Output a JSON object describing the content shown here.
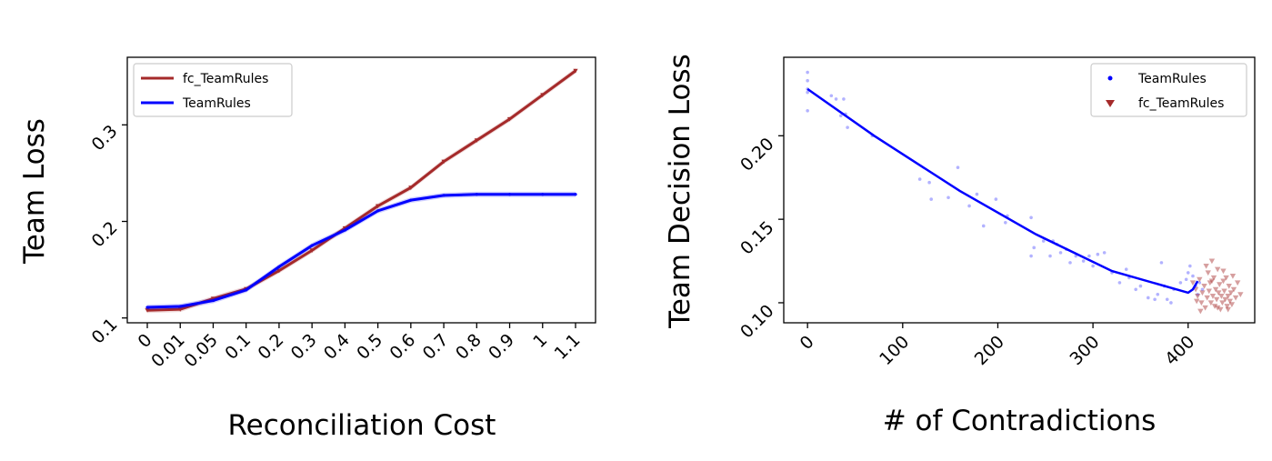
{
  "chart_data": [
    {
      "type": "line",
      "xlabel": "Reconciliation Cost",
      "ylabel": "Team Loss",
      "categories": [
        "0",
        "0.01",
        "0.05",
        "0.1",
        "0.2",
        "0.3",
        "0.4",
        "0.5",
        "0.6",
        "0.7",
        "0.8",
        "0.9",
        "1",
        "1.1"
      ],
      "ylim": [
        0.095,
        0.37
      ],
      "yticks": [
        "0.1",
        "0.2",
        "0.3"
      ],
      "legend_position": "upper-left",
      "grid": false,
      "series": [
        {
          "name": "fc_TeamRules",
          "color": "#a52a2a",
          "marker": "triangle-down",
          "values": [
            0.108,
            0.109,
            0.12,
            0.13,
            0.149,
            0.17,
            0.193,
            0.216,
            0.235,
            0.262,
            0.284,
            0.306,
            0.331,
            0.356
          ]
        },
        {
          "name": "TeamRules",
          "color": "#0000ff",
          "marker": "point",
          "values": [
            0.111,
            0.112,
            0.118,
            0.129,
            0.153,
            0.175,
            0.191,
            0.211,
            0.222,
            0.227,
            0.228,
            0.228,
            0.228,
            0.228
          ]
        }
      ]
    },
    {
      "type": "scatter",
      "xlabel": "# of Contradictions",
      "ylabel": "Team Decision Loss",
      "xlim": [
        -25,
        470
      ],
      "ylim": [
        0.088,
        0.247
      ],
      "xticks": [
        "0",
        "100",
        "200",
        "300",
        "400"
      ],
      "yticks": [
        "0.10",
        "0.15",
        "0.20"
      ],
      "legend_position": "upper-right",
      "grid": false,
      "series": [
        {
          "name": "TeamRules",
          "color": "#0000ff",
          "marker": "point",
          "points": [
            [
              0,
              0.238
            ],
            [
              0,
              0.233
            ],
            [
              0,
              0.226
            ],
            [
              0,
              0.215
            ],
            [
              0,
              0.228
            ],
            [
              25,
              0.224
            ],
            [
              30,
              0.222
            ],
            [
              38,
              0.222
            ],
            [
              35,
              0.212
            ],
            [
              42,
              0.205
            ],
            [
              40,
              0.213
            ],
            [
              68,
              0.2
            ],
            [
              118,
              0.174
            ],
            [
              128,
              0.172
            ],
            [
              130,
              0.162
            ],
            [
              148,
              0.163
            ],
            [
              158,
              0.181
            ],
            [
              170,
              0.158
            ],
            [
              178,
              0.165
            ],
            [
              185,
              0.146
            ],
            [
              198,
              0.162
            ],
            [
              208,
              0.148
            ],
            [
              210,
              0.152
            ],
            [
              235,
              0.151
            ],
            [
              238,
              0.133
            ],
            [
              235,
              0.128
            ],
            [
              248,
              0.137
            ],
            [
              255,
              0.128
            ],
            [
              258,
              0.137
            ],
            [
              262,
              0.135
            ],
            [
              266,
              0.13
            ],
            [
              272,
              0.132
            ],
            [
              276,
              0.124
            ],
            [
              282,
              0.128
            ],
            [
              290,
              0.125
            ],
            [
              296,
              0.128
            ],
            [
              300,
              0.122
            ],
            [
              305,
              0.129
            ],
            [
              312,
              0.13
            ],
            [
              320,
              0.118
            ],
            [
              328,
              0.112
            ],
            [
              335,
              0.12
            ],
            [
              338,
              0.115
            ],
            [
              345,
              0.108
            ],
            [
              350,
              0.11
            ],
            [
              358,
              0.103
            ],
            [
              365,
              0.102
            ],
            [
              368,
              0.105
            ],
            [
              372,
              0.124
            ],
            [
              375,
              0.11
            ],
            [
              378,
              0.102
            ],
            [
              382,
              0.1
            ],
            [
              385,
              0.108
            ],
            [
              392,
              0.112
            ],
            [
              398,
              0.114
            ],
            [
              400,
              0.118
            ],
            [
              402,
              0.122
            ],
            [
              405,
              0.116
            ],
            [
              408,
              0.11
            ],
            [
              410,
              0.105
            ],
            [
              412,
              0.112
            ],
            [
              415,
              0.108
            ]
          ],
          "trend": [
            [
              0,
              0.228
            ],
            [
              70,
              0.2
            ],
            [
              160,
              0.167
            ],
            [
              240,
              0.141
            ],
            [
              320,
              0.119
            ],
            [
              400,
              0.106
            ],
            [
              405,
              0.108
            ],
            [
              410,
              0.113
            ]
          ]
        },
        {
          "name": "fc_TeamRules",
          "color": "#a52a2a",
          "marker": "triangle-down",
          "points": [
            [
              405,
              0.112
            ],
            [
              408,
              0.108
            ],
            [
              410,
              0.104
            ],
            [
              412,
              0.114
            ],
            [
              414,
              0.1
            ],
            [
              415,
              0.106
            ],
            [
              417,
              0.11
            ],
            [
              418,
              0.097
            ],
            [
              420,
              0.103
            ],
            [
              421,
              0.118
            ],
            [
              422,
              0.107
            ],
            [
              423,
              0.112
            ],
            [
              424,
              0.1
            ],
            [
              425,
              0.125
            ],
            [
              426,
              0.104
            ],
            [
              427,
              0.115
            ],
            [
              428,
              0.098
            ],
            [
              429,
              0.108
            ],
            [
              430,
              0.102
            ],
            [
              431,
              0.12
            ],
            [
              432,
              0.106
            ],
            [
              433,
              0.111
            ],
            [
              434,
              0.096
            ],
            [
              435,
              0.104
            ],
            [
              436,
              0.1
            ],
            [
              437,
              0.113
            ],
            [
              438,
              0.107
            ],
            [
              439,
              0.102
            ],
            [
              440,
              0.115
            ],
            [
              441,
              0.098
            ],
            [
              442,
              0.104
            ],
            [
              443,
              0.11
            ],
            [
              444,
              0.101
            ],
            [
              445,
              0.106
            ],
            [
              446,
              0.099
            ],
            [
              448,
              0.108
            ],
            [
              450,
              0.103
            ],
            [
              452,
              0.112
            ],
            [
              455,
              0.105
            ],
            [
              409,
              0.101
            ],
            [
              413,
              0.095
            ],
            [
              419,
              0.122
            ],
            [
              425,
              0.113
            ],
            [
              431,
              0.097
            ],
            [
              437,
              0.119
            ],
            [
              442,
              0.096
            ],
            [
              447,
              0.116
            ]
          ]
        }
      ]
    }
  ]
}
